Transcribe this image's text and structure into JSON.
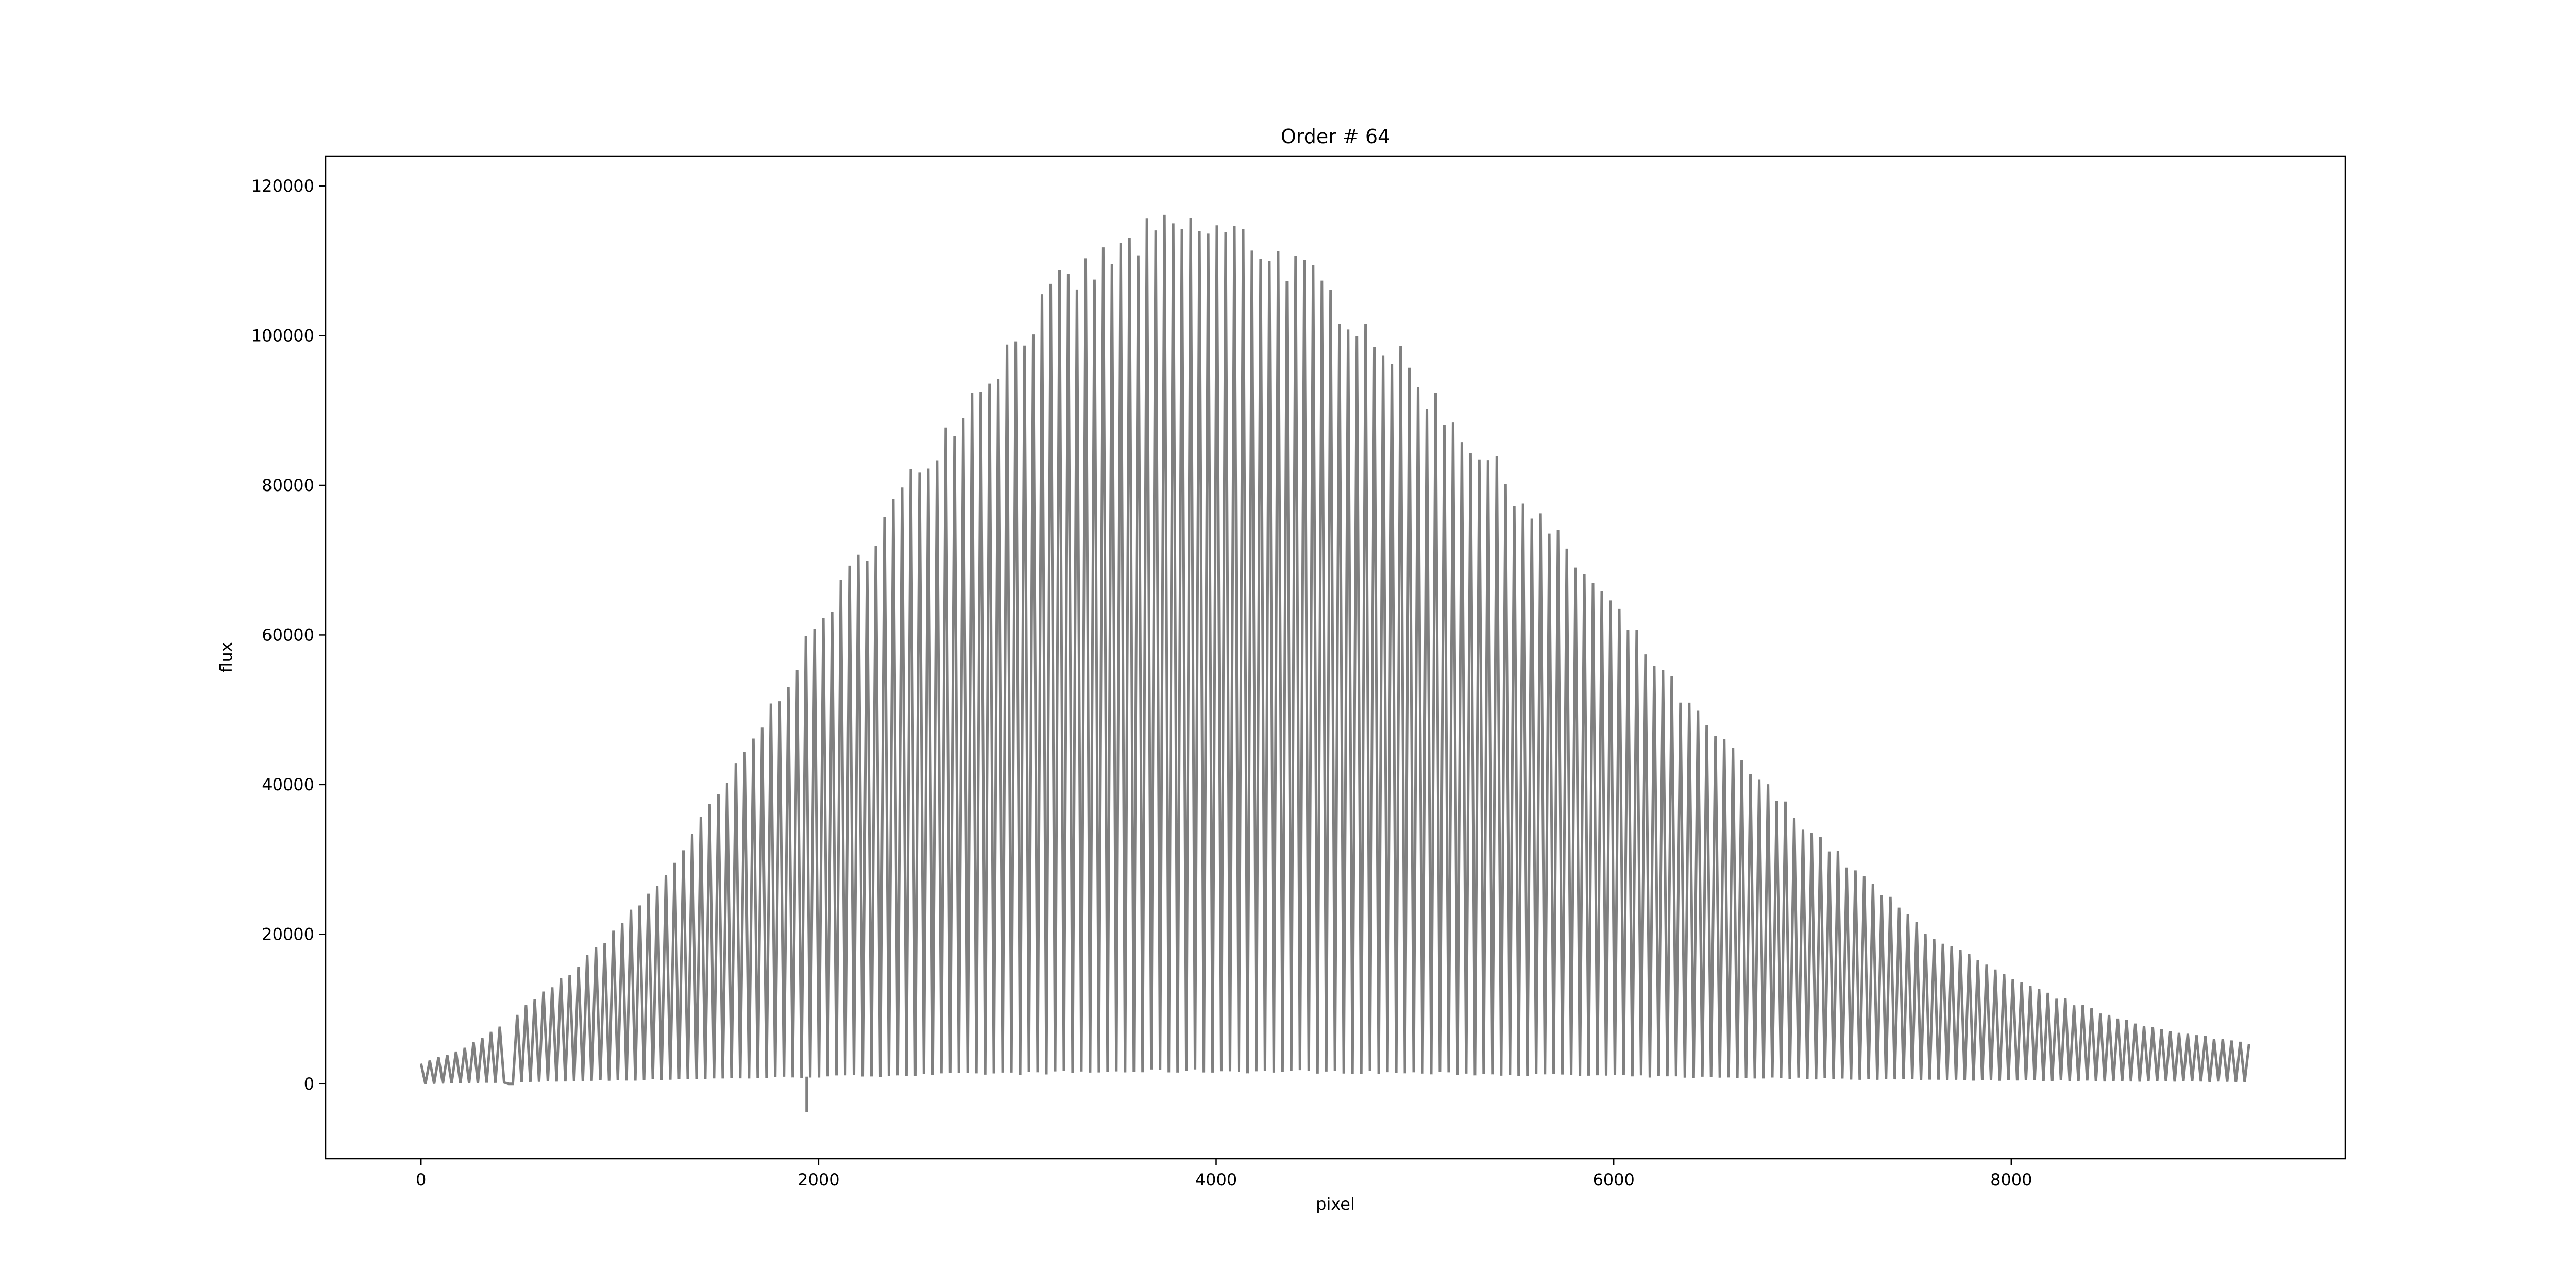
{
  "chart_data": {
    "type": "line",
    "title": "Order # 64",
    "xlabel": "pixel",
    "ylabel": "flux",
    "xlim": [
      -480,
      9680
    ],
    "ylim": [
      -10000,
      124000
    ],
    "x_ticks": [
      0,
      2000,
      4000,
      6000,
      8000
    ],
    "x_tick_labels": [
      "0",
      "2000",
      "4000",
      "6000",
      "8000"
    ],
    "y_ticks": [
      0,
      20000,
      40000,
      60000,
      80000,
      100000,
      120000
    ],
    "y_tick_labels": [
      "0",
      "20000",
      "40000",
      "60000",
      "80000",
      "100000",
      "120000"
    ],
    "grid": false,
    "legend": null,
    "series": [
      {
        "color": "#808080",
        "description": "Dense fringe pattern: flux oscillates rapidly between a lower baseline and an upper envelope",
        "upper_envelope": {
          "x": [
            0,
            200,
            430,
            460,
            800,
            1200,
            1600,
            2000,
            2400,
            2800,
            3200,
            3600,
            3800,
            4000,
            4200,
            4400,
            4800,
            5200,
            5600,
            6000,
            6400,
            6800,
            7200,
            7600,
            8000,
            8400,
            8800,
            9200
          ],
          "y": [
            2800,
            4500,
            8200,
            9000,
            16000,
            27000,
            43000,
            62000,
            79000,
            94000,
            107000,
            113500,
            115500,
            115000,
            113500,
            110000,
            101000,
            89000,
            77000,
            64000,
            50000,
            39000,
            29000,
            20000,
            14000,
            10000,
            7000,
            5500
          ]
        },
        "lower_baseline": {
          "x": [
            0,
            1000,
            2000,
            3000,
            3800,
            4500,
            5500,
            6500,
            7500,
            8500,
            9200
          ],
          "y": [
            0,
            500,
            1000,
            1500,
            1800,
            1700,
            1300,
            900,
            600,
            400,
            300
          ]
        },
        "anomalies": [
          {
            "x": 450,
            "y": 0,
            "note": "gap in data"
          },
          {
            "x": 1940,
            "y": -3800,
            "note": "negative spike"
          }
        ],
        "x_range": [
          0,
          9215
        ]
      }
    ]
  }
}
